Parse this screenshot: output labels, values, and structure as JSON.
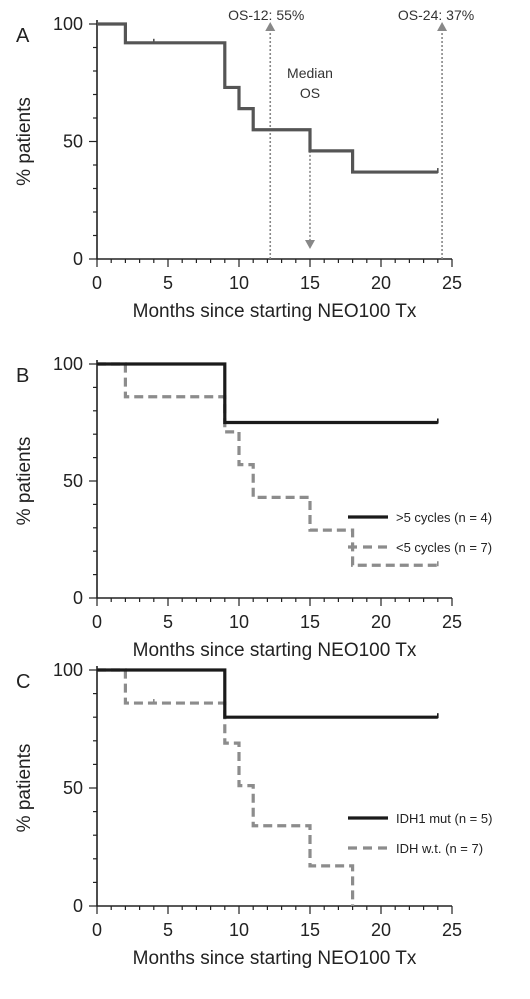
{
  "chart_data": [
    {
      "panel": "A",
      "type": "line",
      "step": true,
      "xlabel": "Months since starting NEO100 Tx",
      "ylabel": "% patients",
      "xlim": [
        0,
        25
      ],
      "ylim": [
        0,
        100
      ],
      "xticks": [
        "0",
        "5",
        "10",
        "15",
        "20",
        "25"
      ],
      "yticks": [
        "0",
        "50",
        "100"
      ],
      "series": [
        {
          "name": "",
          "color": "#555555",
          "dash": false,
          "x": [
            0,
            2,
            9,
            10,
            11,
            15,
            18,
            24
          ],
          "y": [
            100,
            92,
            73,
            64,
            55,
            46,
            37,
            37
          ],
          "censored": [
            [
              4,
              92
            ],
            [
              24,
              37
            ]
          ]
        }
      ],
      "annotations": [
        {
          "label": "OS-12: 55%",
          "x": 12.2,
          "y": 55,
          "direction": "up"
        },
        {
          "label": "Median\nOS",
          "x": 15,
          "y": 46,
          "direction": "down"
        },
        {
          "label": "OS-24: 37%",
          "x": 24.3,
          "y": 37,
          "direction": "up"
        }
      ],
      "legend": null
    },
    {
      "panel": "B",
      "type": "line",
      "step": true,
      "xlabel": "Months since starting NEO100 Tx",
      "ylabel": "% patients",
      "xlim": [
        0,
        25
      ],
      "ylim": [
        0,
        100
      ],
      "xticks": [
        "0",
        "5",
        "10",
        "15",
        "20",
        "25"
      ],
      "yticks": [
        "0",
        "50",
        "100"
      ],
      "series": [
        {
          "name": ">5 cycles (n = 4)",
          "color": "#1a1a1a",
          "dash": false,
          "x": [
            0,
            9,
            24
          ],
          "y": [
            100,
            75,
            75
          ],
          "censored": [
            [
              24,
              75
            ]
          ]
        },
        {
          "name": "<5 cycles (n = 7)",
          "color": "#8c8c8c",
          "dash": true,
          "x": [
            0,
            2,
            9,
            10,
            11,
            15,
            18,
            24
          ],
          "y": [
            100,
            86,
            71,
            57,
            43,
            29,
            14,
            14
          ],
          "censored": [
            [
              24,
              14
            ]
          ]
        }
      ],
      "annotations": [],
      "legend": "right"
    },
    {
      "panel": "C",
      "type": "line",
      "step": true,
      "xlabel": "Months since starting NEO100 Tx",
      "ylabel": "% patients",
      "xlim": [
        0,
        25
      ],
      "ylim": [
        0,
        100
      ],
      "xticks": [
        "0",
        "5",
        "10",
        "15",
        "20",
        "25"
      ],
      "yticks": [
        "0",
        "50",
        "100"
      ],
      "series": [
        {
          "name": "IDH1 mut (n = 5)",
          "color": "#1a1a1a",
          "dash": false,
          "x": [
            0,
            9,
            24
          ],
          "y": [
            100,
            80,
            80
          ],
          "censored": [
            [
              24,
              80
            ]
          ]
        },
        {
          "name": "IDH w.t. (n = 7)",
          "color": "#8c8c8c",
          "dash": true,
          "x": [
            0,
            2,
            9,
            10,
            11,
            15,
            18
          ],
          "y": [
            100,
            86,
            69,
            51,
            34,
            17,
            0
          ],
          "censored": [
            [
              4,
              86
            ]
          ]
        }
      ],
      "annotations": [],
      "legend": "right"
    }
  ]
}
